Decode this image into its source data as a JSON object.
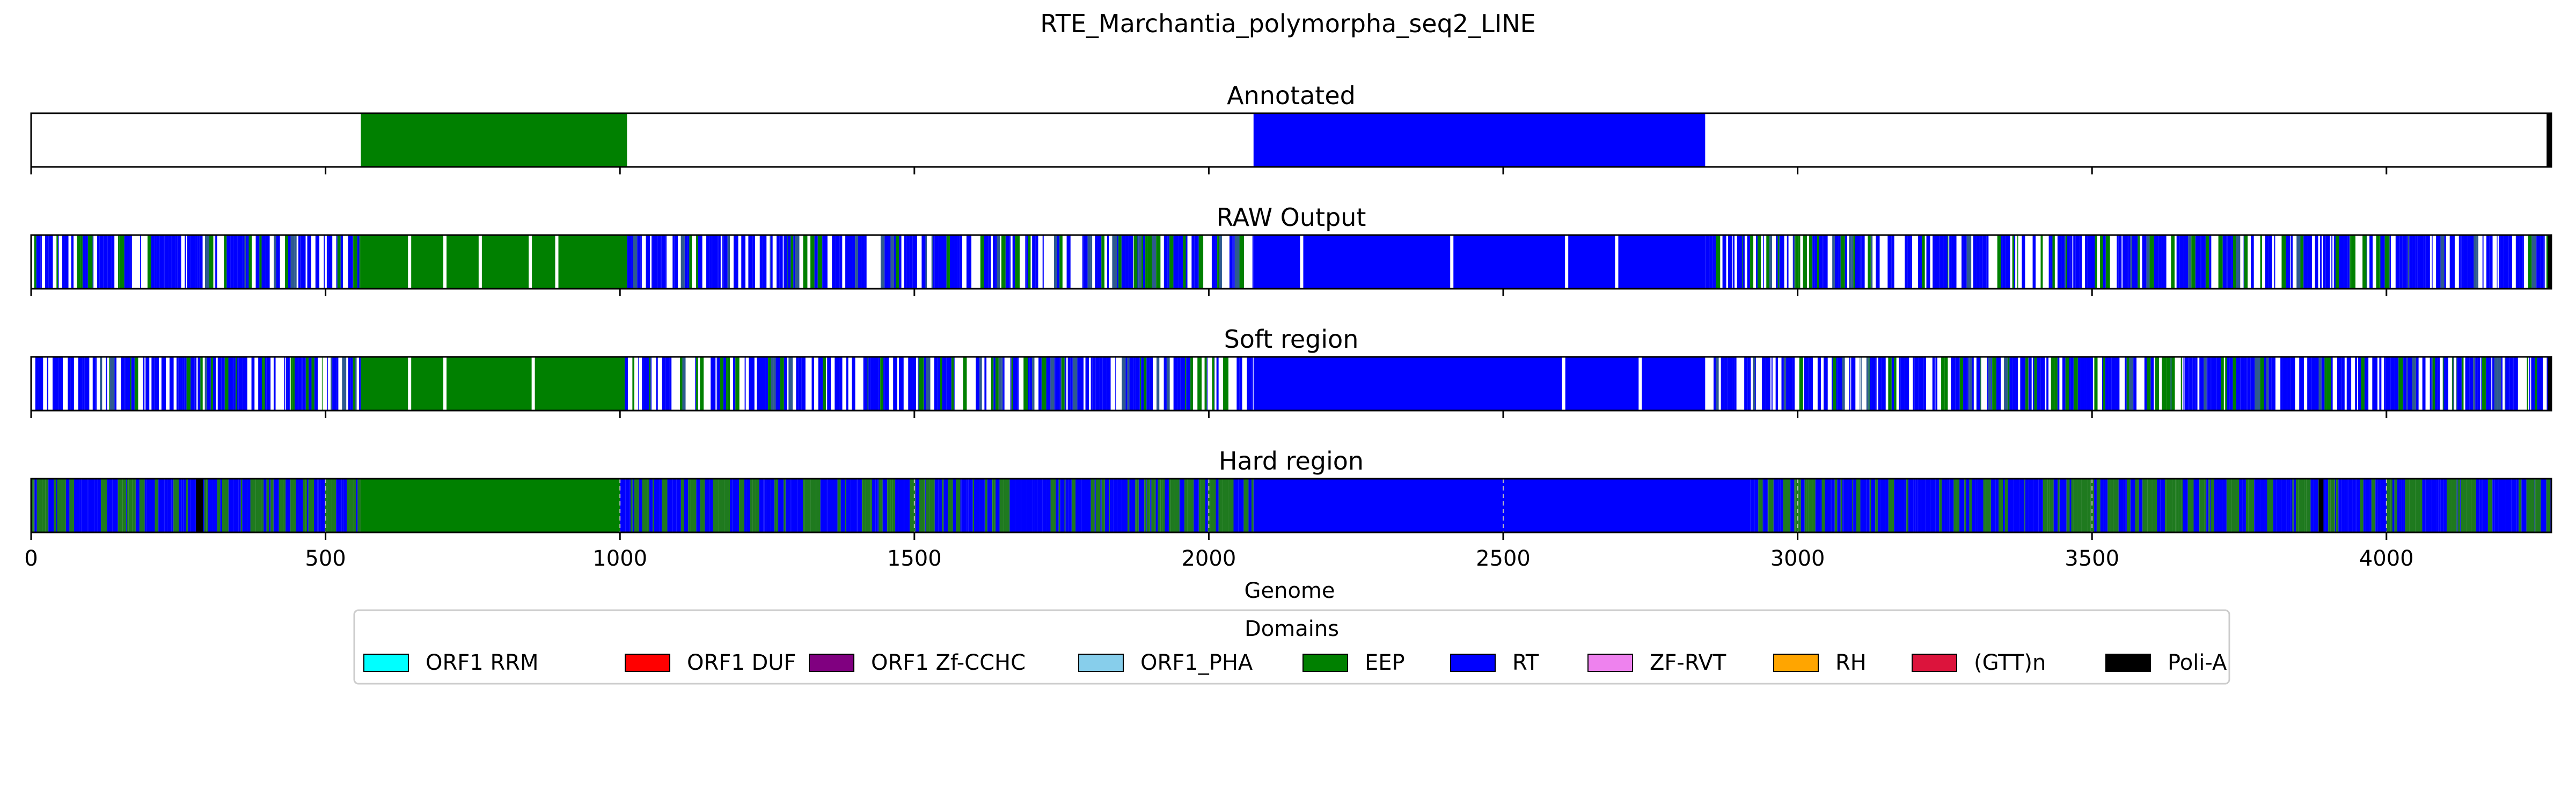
{
  "chart_data": {
    "type": "bar",
    "title": "RTE_Marchantia_polymorpha_seq2_LINE",
    "xlabel": "Genome",
    "xlim": [
      0,
      4280
    ],
    "xticks": [
      0,
      500,
      1000,
      1500,
      2000,
      2500,
      3000,
      3500,
      4000
    ],
    "tracks": [
      {
        "name": "Annotated",
        "segments": [
          {
            "start": 560,
            "end": 1012,
            "domain": "EEP"
          },
          {
            "start": 2076,
            "end": 2843,
            "domain": "RT"
          },
          {
            "start": 4272,
            "end": 4280,
            "domain": "Poli-A"
          }
        ]
      },
      {
        "name": "RAW Output",
        "base": "mixed",
        "segments": [
          {
            "start": 560,
            "end": 1012,
            "domain": "EEP"
          },
          {
            "start": 2076,
            "end": 2843,
            "domain": "RT"
          },
          {
            "start": 4274,
            "end": 4280,
            "domain": "Poli-A"
          }
        ]
      },
      {
        "name": "Soft region",
        "base": "mixed",
        "segments": [
          {
            "start": 560,
            "end": 1008,
            "domain": "EEP"
          },
          {
            "start": 2076,
            "end": 2600,
            "domain": "RT"
          },
          {
            "start": 2600,
            "end": 2843,
            "domain": "RT"
          },
          {
            "start": 4274,
            "end": 4280,
            "domain": "Poli-A"
          }
        ]
      },
      {
        "name": "Hard region",
        "base": "dense",
        "segments": [
          {
            "start": 560,
            "end": 1000,
            "domain": "EEP"
          },
          {
            "start": 2076,
            "end": 2920,
            "domain": "RT"
          },
          {
            "start": 280,
            "end": 292,
            "domain": "Poli-A"
          },
          {
            "start": 3885,
            "end": 3893,
            "domain": "Poli-A"
          }
        ]
      }
    ],
    "legend": {
      "title": "Domains",
      "placement": "bottom-center",
      "items": [
        {
          "name": "ORF1 RRM",
          "color": "#00ffff"
        },
        {
          "name": "ORF1 DUF",
          "color": "#ff0000"
        },
        {
          "name": "ORF1 Zf-CCHC",
          "color": "#800080"
        },
        {
          "name": "ORF1_PHA",
          "color": "#87ceeb"
        },
        {
          "name": "EEP",
          "color": "#008000"
        },
        {
          "name": "RT",
          "color": "#0000ff"
        },
        {
          "name": "ZF-RVT",
          "color": "#ee82ee"
        },
        {
          "name": "RH",
          "color": "#ffa500"
        },
        {
          "name": "(GTT)n",
          "color": "#dc143c"
        },
        {
          "name": "Poli-A",
          "color": "#000000"
        }
      ]
    }
  }
}
